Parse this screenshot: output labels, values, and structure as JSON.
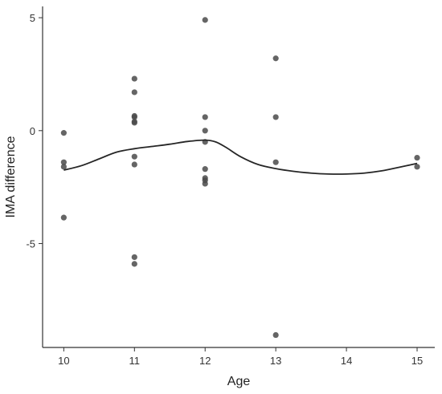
{
  "chart_data": {
    "type": "scatter",
    "xlabel": "Age",
    "ylabel": "IMA difference",
    "xlim": [
      9.7,
      15.25
    ],
    "ylim": [
      -9.6,
      5.5
    ],
    "x_ticks": [
      10,
      11,
      12,
      13,
      14,
      15
    ],
    "y_ticks": [
      5,
      0,
      -5
    ],
    "y_tick_labels": [
      "5",
      "0",
      "-5"
    ],
    "grid": false,
    "legend": "none",
    "points": [
      {
        "x": 10,
        "y": -0.1
      },
      {
        "x": 10,
        "y": -1.4
      },
      {
        "x": 10,
        "y": -1.6
      },
      {
        "x": 10,
        "y": -3.85
      },
      {
        "x": 11,
        "y": 2.3
      },
      {
        "x": 11,
        "y": 1.7
      },
      {
        "x": 11,
        "y": 0.65
      },
      {
        "x": 11,
        "y": 0.6
      },
      {
        "x": 11,
        "y": 0.4
      },
      {
        "x": 11,
        "y": 0.35
      },
      {
        "x": 11,
        "y": -1.15
      },
      {
        "x": 11,
        "y": -1.5
      },
      {
        "x": 11,
        "y": -5.6
      },
      {
        "x": 11,
        "y": -5.9
      },
      {
        "x": 12,
        "y": 4.9
      },
      {
        "x": 12,
        "y": 0.6
      },
      {
        "x": 12,
        "y": 0.0
      },
      {
        "x": 12,
        "y": -0.5
      },
      {
        "x": 12,
        "y": -1.7
      },
      {
        "x": 12,
        "y": -2.1
      },
      {
        "x": 12,
        "y": -2.2
      },
      {
        "x": 12,
        "y": -2.35
      },
      {
        "x": 13,
        "y": 3.2
      },
      {
        "x": 13,
        "y": 0.6
      },
      {
        "x": 13,
        "y": -1.4
      },
      {
        "x": 13,
        "y": -9.05
      },
      {
        "x": 15,
        "y": -1.2
      },
      {
        "x": 15,
        "y": -1.6
      }
    ],
    "smooth_line": {
      "x": [
        10,
        10.25,
        10.5,
        10.75,
        11,
        11.25,
        11.5,
        11.75,
        12,
        12.15,
        12.3,
        12.5,
        12.75,
        13,
        13.25,
        13.5,
        13.75,
        14,
        14.25,
        14.5,
        14.75,
        15
      ],
      "y": [
        -1.75,
        -1.55,
        -1.25,
        -0.95,
        -0.8,
        -0.7,
        -0.6,
        -0.48,
        -0.42,
        -0.5,
        -0.75,
        -1.15,
        -1.5,
        -1.68,
        -1.8,
        -1.88,
        -1.92,
        -1.92,
        -1.88,
        -1.78,
        -1.62,
        -1.45
      ]
    },
    "colors": {
      "points": "#4a4a4a",
      "line": "#262626",
      "axis": "#333333"
    }
  }
}
